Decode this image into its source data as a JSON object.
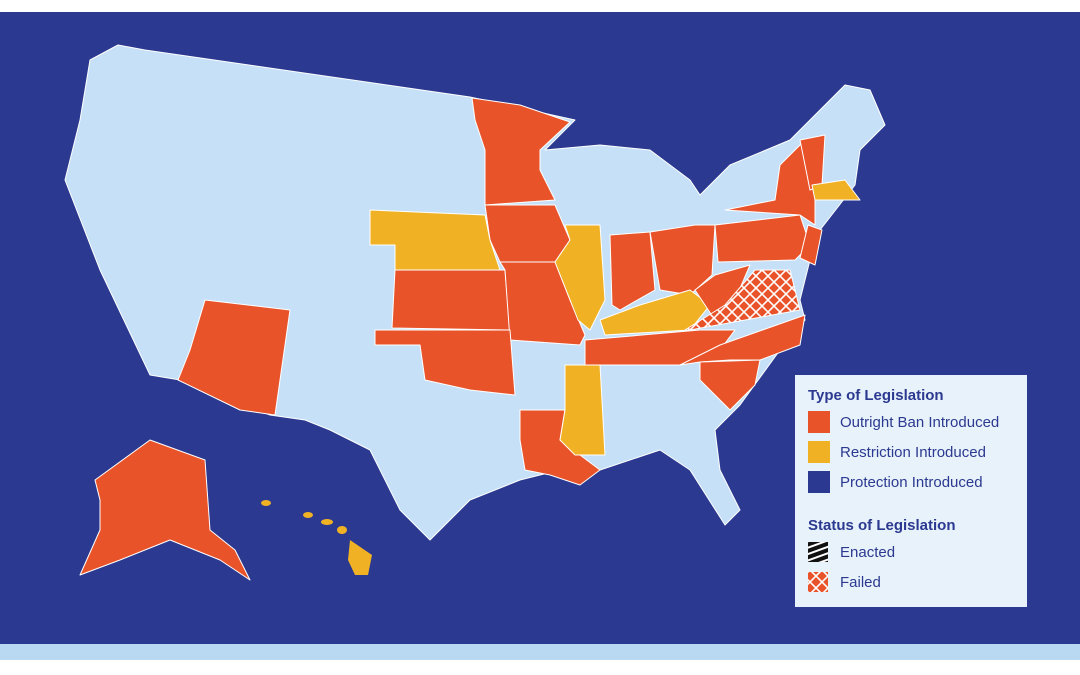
{
  "legend": {
    "type_title": "Type of Legislation",
    "types": [
      "Outright Ban Introduced",
      "Restriction Introduced",
      "Protection Introduced"
    ],
    "status_title": "Status of Legislation",
    "statuses": [
      "Enacted",
      "Failed"
    ]
  }
}
